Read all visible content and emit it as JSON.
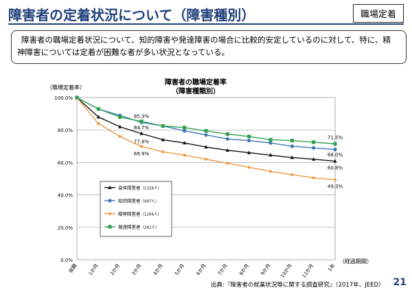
{
  "header": {
    "title": "障害者の定着状況について（障害種別）",
    "badge": "職場定着"
  },
  "summary": {
    "line1": "障害者の職場定着状況について、知的障害や発達障害の場合に比較的安定しているのに対して、特に、精",
    "line2": "神障害については定着が困難な者が多い状況となっている。"
  },
  "footer": {
    "source": "出典:『障害者の就業状況等に関する調査研究』（2017年、JEED）",
    "page": "21"
  },
  "chart_data": {
    "type": "line",
    "title_line1": "障害者の職場定着率",
    "title_line2": "（障害種類別）",
    "ylabel": "（職場定着率）",
    "xlabel": "（経過期間）",
    "ylim": [
      0,
      100
    ],
    "yticks": [
      "0.0%",
      "20.0%",
      "40.0%",
      "60.0%",
      "80.0%",
      "100.0%"
    ],
    "categories": [
      "就職",
      "1か月",
      "2か月",
      "3か月",
      "4か月",
      "5か月",
      "6か月",
      "7か月",
      "8か月",
      "9か月",
      "10か月",
      "11か月",
      "1年"
    ],
    "series": [
      {
        "name": "身体障害者",
        "n": "（1328人）",
        "color": "#111111",
        "marker": "triangle",
        "values": [
          100,
          88,
          82,
          77.8,
          74,
          72,
          69.5,
          67.5,
          66,
          64.5,
          63,
          62,
          60.8
        ]
      },
      {
        "name": "知的障害者",
        "n": "（497人）",
        "color": "#3a78b8",
        "marker": "circle",
        "values": [
          100,
          93,
          89,
          84.7,
          82.5,
          79.5,
          77,
          74.5,
          73.5,
          72,
          70,
          69,
          68.0
        ]
      },
      {
        "name": "精神障害者",
        "n": "（1206人）",
        "color": "#f0963c",
        "marker": "diamond",
        "values": [
          100,
          84,
          76,
          69.9,
          66.5,
          64.5,
          62,
          59.5,
          57,
          54.5,
          52.5,
          50.5,
          49.3
        ]
      },
      {
        "name": "発達障害者",
        "n": "（242人）",
        "color": "#2ea050",
        "marker": "square",
        "values": [
          100,
          93,
          88,
          85.3,
          82.5,
          81.5,
          79.5,
          77.5,
          76,
          74,
          73.5,
          72.5,
          71.5
        ]
      }
    ],
    "annotations": [
      {
        "text": "85.3%",
        "series": 3,
        "index": 3
      },
      {
        "text": "84.7%",
        "series": 1,
        "index": 3
      },
      {
        "text": "77.8%",
        "series": 0,
        "index": 3
      },
      {
        "text": "69.9%",
        "series": 2,
        "index": 3
      },
      {
        "text": "71.5%",
        "series": 3,
        "index": 12
      },
      {
        "text": "68.0%",
        "series": 1,
        "index": 12
      },
      {
        "text": "60.8%",
        "series": 0,
        "index": 12
      },
      {
        "text": "49.3%",
        "series": 2,
        "index": 12
      }
    ]
  }
}
